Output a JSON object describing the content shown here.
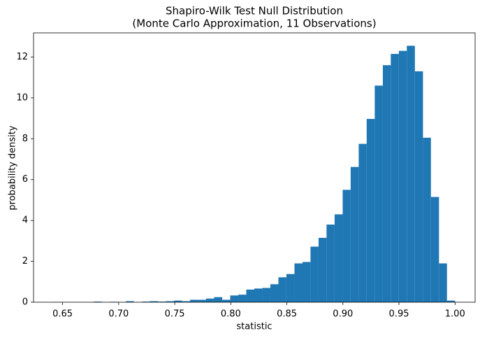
{
  "chart_data": {
    "type": "histogram",
    "title": "Shapiro-Wilk Test Null Distribution",
    "subtitle": "(Monte Carlo Approximation, 11 Observations)",
    "x_label": "statistic",
    "y_label": "probability density",
    "color": "#1f77b4",
    "bins": [
      0.642,
      0.6492,
      0.6563,
      0.6635,
      0.6706,
      0.6778,
      0.685,
      0.6921,
      0.6993,
      0.7064,
      0.7136,
      0.7208,
      0.7279,
      0.7351,
      0.7422,
      0.7494,
      0.7566,
      0.7637,
      0.7709,
      0.778,
      0.7852,
      0.7924,
      0.7995,
      0.8067,
      0.8138,
      0.821,
      0.8282,
      0.8353,
      0.8425,
      0.8496,
      0.8568,
      0.864,
      0.8711,
      0.8783,
      0.8854,
      0.8926,
      0.8998,
      0.9069,
      0.9141,
      0.9212,
      0.9284,
      0.9356,
      0.9427,
      0.9499,
      0.957,
      0.9642,
      0.9714,
      0.9785,
      0.9857,
      0.9928,
      1.0
    ],
    "values": [
      0.01,
      0,
      0,
      0,
      0,
      0.03,
      0,
      0.02,
      0,
      0.05,
      0,
      0.03,
      0.05,
      0.03,
      0.05,
      0.08,
      0.05,
      0.12,
      0.12,
      0.18,
      0.25,
      0.12,
      0.33,
      0.37,
      0.62,
      0.67,
      0.7,
      0.88,
      1.22,
      1.38,
      1.9,
      1.97,
      2.72,
      3.15,
      3.8,
      4.3,
      5.5,
      6.62,
      7.75,
      8.97,
      10.6,
      11.6,
      12.15,
      12.3,
      12.55,
      11.3,
      8.05,
      5.15,
      1.9,
      0.08
    ],
    "xlim": [
      0.6241,
      1.0179
    ],
    "ylim": [
      0,
      13.18
    ],
    "xticks": [
      0.65,
      {
        "value": 0.7,
        "label": "0.70"
      },
      0.75,
      {
        "value": 0.8,
        "label": "0.80"
      },
      0.85,
      {
        "value": 0.9,
        "label": "0.90"
      },
      0.95,
      {
        "value": 1.0,
        "label": "1.00"
      }
    ],
    "yticks": [
      0,
      2,
      4,
      6,
      8,
      10,
      12
    ]
  }
}
